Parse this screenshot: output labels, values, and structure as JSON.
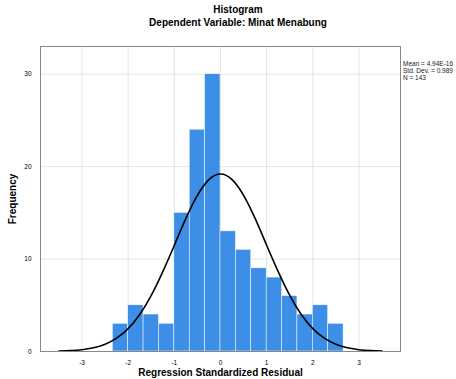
{
  "chart_data": {
    "type": "histogram",
    "title": "Histogram",
    "subtitle": "Dependent Variable: Minat Menabung",
    "x_label": "Regression Standardized Residual",
    "y_label": "Frequency",
    "bins": [
      -2.333,
      -2,
      -1.667,
      -1.333,
      -1,
      -0.667,
      -0.333,
      0,
      0.333,
      0.667,
      1,
      1.333,
      1.667,
      2,
      2.333,
      2.667
    ],
    "values": [
      3,
      5,
      4,
      3,
      15,
      24,
      30,
      13,
      11,
      9,
      8,
      6,
      4,
      5,
      3
    ],
    "color": "#3d8ee6",
    "normal_curve": {
      "x": [
        -3.5,
        -3.25,
        -3,
        -2.75,
        -2.5,
        -2.25,
        -2,
        -1.75,
        -1.5,
        -1.25,
        -1,
        -0.75,
        -0.5,
        -0.25,
        0,
        0.25,
        0.5,
        0.75,
        1,
        1.25,
        1.5,
        1.75,
        2,
        2.25,
        2.5,
        2.75,
        3,
        3.25,
        3.5
      ],
      "values": [
        0.04,
        0.09,
        0.19,
        0.4,
        0.78,
        1.44,
        2.47,
        4.0,
        6.07,
        8.64,
        11.5,
        14.4,
        16.9,
        18.6,
        19.2,
        18.6,
        16.9,
        14.4,
        11.5,
        8.64,
        6.07,
        4.0,
        2.47,
        1.44,
        0.78,
        0.4,
        0.19,
        0.09,
        0.04
      ],
      "color": "#000000"
    },
    "annotations": [
      "Mean = 4.94E-16",
      "Std. Dev. = 0.989",
      "N = 143"
    ],
    "xlim": [
      -3.9,
      3.9
    ],
    "xticks": [
      -3,
      -2,
      -1,
      0,
      1,
      2,
      3
    ],
    "ylim": [
      0,
      33
    ],
    "yticks": [
      0,
      10,
      20,
      30
    ],
    "grid": true
  }
}
